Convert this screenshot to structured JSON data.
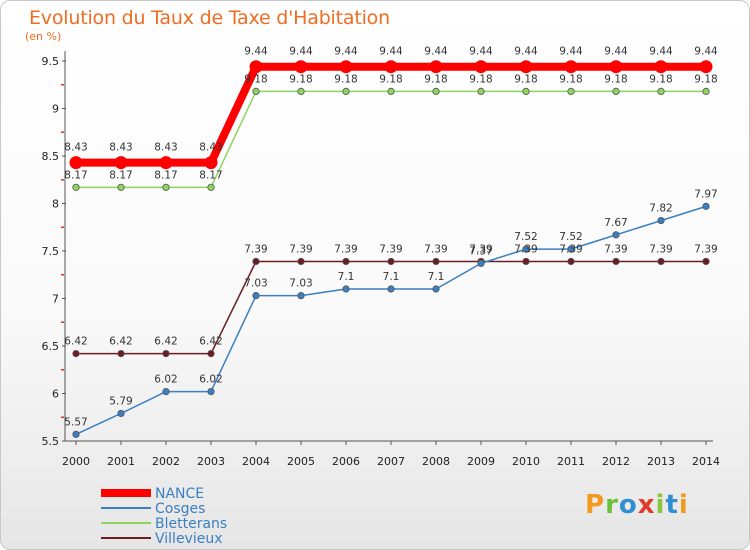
{
  "header": {
    "title": "Evolution du Taux de Taxe d'Habitation",
    "unit": "(en %)"
  },
  "logo": {
    "text": "Proxiti",
    "letters": [
      {
        "char": "P",
        "color": "#f29a1f"
      },
      {
        "char": "r",
        "color": "#6bbf3a"
      },
      {
        "char": "o",
        "color": "#2f8fd0"
      },
      {
        "char": "x",
        "color": "#e23a2a"
      },
      {
        "char": "i",
        "color": "#8bc53f"
      },
      {
        "char": "t",
        "color": "#2f8fd0"
      },
      {
        "char": "i",
        "color": "#f29a1f"
      }
    ]
  },
  "chart_data": {
    "type": "line",
    "title": "Evolution du Taux de Taxe d'Habitation",
    "ylabel": "(en %)",
    "xlabel": "",
    "categories": [
      "2000",
      "2001",
      "2002",
      "2003",
      "2004",
      "2005",
      "2006",
      "2007",
      "2008",
      "2009",
      "2010",
      "2011",
      "2012",
      "2013",
      "2014"
    ],
    "ylim": [
      5.5,
      9.5
    ],
    "yticks": [
      "5.5",
      "6",
      "6.5",
      "7",
      "7.5",
      "8",
      "8.5",
      "9",
      "9.5"
    ],
    "grid": false,
    "legend_position": "bottom-left",
    "series": [
      {
        "name": "Villevieux",
        "color": "#6b1d22",
        "values": [
          6.42,
          6.42,
          6.42,
          6.42,
          7.39,
          7.39,
          7.39,
          7.39,
          7.39,
          7.39,
          7.39,
          7.39,
          7.39,
          7.39,
          7.39
        ],
        "labels": [
          "6.42",
          "6.42",
          "6.42",
          "6.42",
          "7.39",
          "7.39",
          "7.39",
          "7.39",
          "7.39",
          "7.39",
          "7.39",
          "7.39",
          "7.39",
          "7.39",
          "7.39"
        ]
      },
      {
        "name": "Cosges",
        "color": "#3a7fc1",
        "values": [
          5.57,
          5.79,
          6.02,
          6.02,
          7.03,
          7.03,
          7.1,
          7.1,
          7.1,
          7.37,
          7.52,
          7.52,
          7.67,
          7.82,
          7.97
        ],
        "labels": [
          "5.57",
          "5.79",
          "6.02",
          "6.02",
          "7.03",
          "7.03",
          "7.1",
          "7.1",
          "7.1",
          "7.37",
          "7.52",
          "7.52",
          "7.67",
          "7.82",
          "7.97"
        ]
      },
      {
        "name": "Bletterans",
        "color": "#8fd45e",
        "values": [
          8.17,
          8.17,
          8.17,
          8.17,
          9.18,
          9.18,
          9.18,
          9.18,
          9.18,
          9.18,
          9.18,
          9.18,
          9.18,
          9.18,
          9.18
        ],
        "labels": [
          "8.17",
          "8.17",
          "8.17",
          "8.17",
          "9.18",
          "9.18",
          "9.18",
          "9.18",
          "9.18",
          "9.18",
          "9.18",
          "9.18",
          "9.18",
          "9.18",
          "9.18"
        ]
      },
      {
        "name": "NANCE",
        "color": "#ff0000",
        "values": [
          8.43,
          8.43,
          8.43,
          8.43,
          9.44,
          9.44,
          9.44,
          9.44,
          9.44,
          9.44,
          9.44,
          9.44,
          9.44,
          9.44,
          9.44
        ],
        "labels": [
          "8.43",
          "8.43",
          "8.43",
          "8.43",
          "9.44",
          "9.44",
          "9.44",
          "9.44",
          "9.44",
          "9.44",
          "9.44",
          "9.44",
          "9.44",
          "9.44",
          "9.44"
        ]
      }
    ],
    "legend": [
      "NANCE",
      "Cosges",
      "Bletterans",
      "Villevieux"
    ]
  }
}
